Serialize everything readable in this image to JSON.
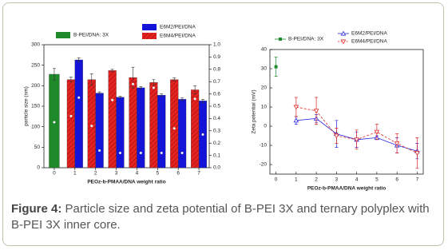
{
  "chart_data": [
    {
      "type": "bar",
      "x_label": "PEOz-b-PMAA/DNA weight ratio",
      "y_label": "particle size (nm)",
      "categories": [
        "0",
        "1",
        "2",
        "3",
        "4",
        "5",
        "6",
        "7"
      ],
      "ylim": [
        0,
        300
      ],
      "yticks": [
        0,
        50,
        100,
        150,
        200,
        250,
        300
      ],
      "y2lim": [
        0,
        1.0
      ],
      "y2ticks": [
        {
          "value": 0.0,
          "label": "0.0"
        },
        0.1,
        0.2,
        0.3,
        0.4,
        0.5,
        0.6,
        0.7,
        0.8,
        0.9,
        {
          "value": 1.0,
          "label": "1.0"
        }
      ],
      "series": [
        {
          "name": "B-PEI/DNA: 3X",
          "color": "#1f8a2a",
          "values": [
            228,
            null,
            null,
            null,
            null,
            null,
            null,
            null
          ],
          "errors": [
            14,
            null,
            null,
            null,
            null,
            null,
            null,
            null
          ],
          "pdi": [
            0.37,
            null,
            null,
            null,
            null,
            null,
            null,
            null
          ]
        },
        {
          "name": "E6M2/PEI/DNA",
          "color": "#1414d8",
          "values": [
            null,
            263,
            182,
            172,
            195,
            177,
            167,
            163
          ],
          "errors": [
            null,
            5,
            3,
            2,
            3,
            3,
            3,
            4
          ],
          "pdi": [
            null,
            0.57,
            0.14,
            0.12,
            0.12,
            0.12,
            0.12,
            0.27
          ]
        },
        {
          "name": "E6M4/PEI/DNA",
          "color": "#e8231f",
          "hatch": true,
          "values": [
            null,
            215,
            215,
            237,
            220,
            208,
            215,
            190
          ],
          "errors": [
            null,
            6,
            14,
            3,
            25,
            7,
            4,
            10
          ],
          "pdi": [
            null,
            0.42,
            0.34,
            0.55,
            0.68,
            0.65,
            0.32,
            0.56
          ]
        }
      ]
    },
    {
      "type": "line",
      "x_label": "PEOz-b-PMAA/DNA weight ratio",
      "y_label": "Zeta potential (mV)",
      "xlim": [
        -0.3,
        7.3
      ],
      "xticks": [
        0,
        1,
        2,
        3,
        4,
        5,
        6,
        7
      ],
      "ylim": [
        -25,
        40
      ],
      "yticks": [
        -20,
        -10,
        0,
        10,
        20,
        30,
        40
      ],
      "series": [
        {
          "name": "B-PEI/DNA: 3X",
          "color": "#1f8a2a",
          "marker": "square",
          "x": [
            0
          ],
          "values": [
            31
          ],
          "errors": [
            5
          ]
        },
        {
          "name": "E6M2/PEI/DNA",
          "color": "#2626e0",
          "marker": "triangle-up",
          "x": [
            1,
            2,
            3,
            4,
            5,
            6,
            7
          ],
          "values": [
            3,
            4,
            -4,
            -7,
            -6,
            -10,
            -13
          ],
          "errors": [
            2,
            2,
            7,
            4,
            1,
            4,
            4
          ]
        },
        {
          "name": "E6M4/PEI/DNA",
          "color": "#e02626",
          "marker": "triangle-down",
          "dash": true,
          "x": [
            1,
            2,
            3,
            4,
            5,
            6,
            7
          ],
          "values": [
            10,
            8,
            -5,
            -7,
            -3,
            -9,
            -14
          ],
          "errors": [
            5,
            7,
            4,
            5,
            4,
            5,
            8
          ]
        }
      ]
    }
  ],
  "caption": {
    "label": "Figure 4:",
    "text": "Particle size and zeta potential of B-PEI 3X and ternary polyplex with B-PEI 3X inner core."
  }
}
